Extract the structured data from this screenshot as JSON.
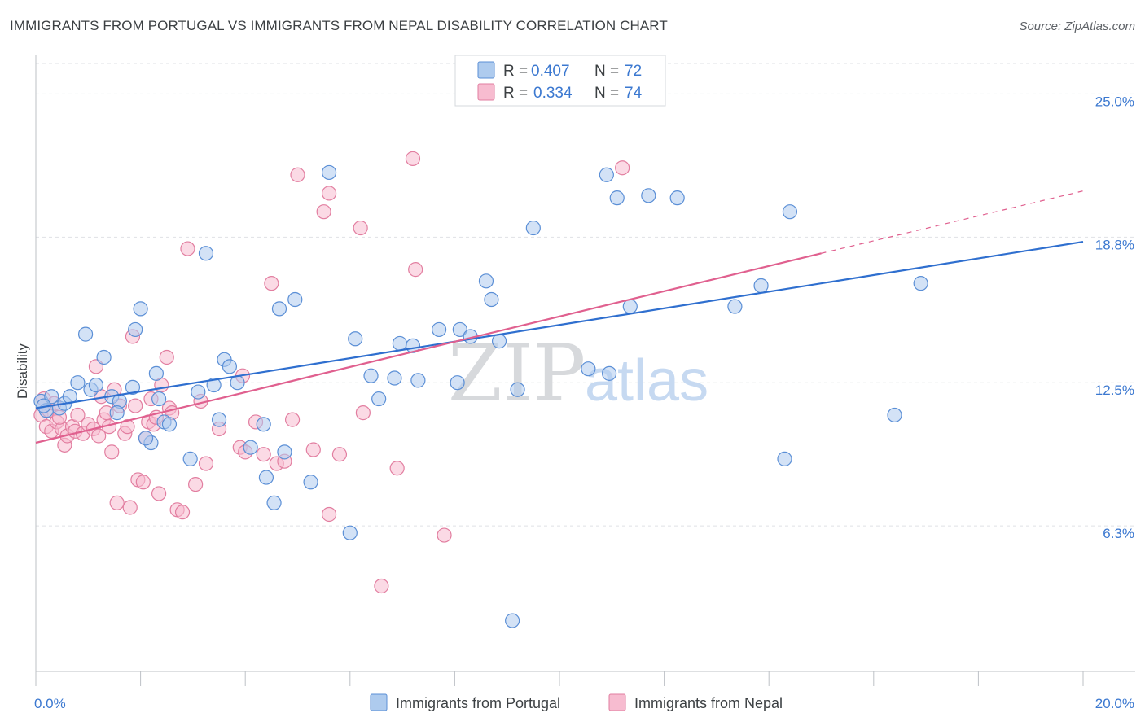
{
  "header": {
    "title": "IMMIGRANTS FROM PORTUGAL VS IMMIGRANTS FROM NEPAL DISABILITY CORRELATION CHART",
    "source": "Source: ZipAtlas.com"
  },
  "watermark": {
    "zip": "ZIP",
    "atlas": "atlas"
  },
  "legend": {
    "r_label": "R =",
    "n_label": "N =",
    "items": [
      {
        "r": "0.407",
        "n": "72"
      },
      {
        "r": "0.334",
        "n": "74"
      }
    ]
  },
  "colors": {
    "portugal_fill": "#aecbee",
    "portugal_stroke": "#5b8fd6",
    "portugal_line": "#2f6fcf",
    "nepal_fill": "#f7bcd0",
    "nepal_stroke": "#e27ea0",
    "nepal_line": "#e0608f",
    "grid": "#dfe1e5",
    "tick_label": "#3b78d0"
  },
  "chart_data": {
    "type": "scatter",
    "title": "IMMIGRANTS FROM PORTUGAL VS IMMIGRANTS FROM NEPAL DISABILITY CORRELATION CHART",
    "xlabel": "",
    "ylabel": "Disability",
    "xlim": [
      0,
      20
    ],
    "ylim": [
      0,
      26.6
    ],
    "x_tick_labels": [
      "0.0%",
      "20.0%"
    ],
    "y_ticks": [
      {
        "value": 6.3,
        "label": "6.3%"
      },
      {
        "value": 12.5,
        "label": "12.5%"
      },
      {
        "value": 18.8,
        "label": "18.8%"
      },
      {
        "value": 25.0,
        "label": "25.0%"
      }
    ],
    "grid": true,
    "series": [
      {
        "name": "Immigrants from Portugal",
        "r": 0.407,
        "n": 72,
        "trend": {
          "x": [
            0,
            20
          ],
          "y": [
            11.4,
            18.6
          ]
        },
        "points": [
          [
            0.1,
            11.7
          ],
          [
            0.2,
            11.3
          ],
          [
            0.3,
            11.9
          ],
          [
            0.45,
            11.4
          ],
          [
            0.55,
            11.6
          ],
          [
            0.65,
            11.9
          ],
          [
            0.8,
            12.5
          ],
          [
            0.95,
            14.6
          ],
          [
            1.05,
            12.2
          ],
          [
            1.15,
            12.4
          ],
          [
            1.3,
            13.6
          ],
          [
            1.45,
            11.9
          ],
          [
            1.6,
            11.7
          ],
          [
            1.85,
            12.3
          ],
          [
            1.9,
            14.8
          ],
          [
            2.0,
            15.7
          ],
          [
            2.2,
            9.9
          ],
          [
            2.35,
            11.8
          ],
          [
            2.3,
            12.9
          ],
          [
            2.45,
            10.8
          ],
          [
            2.55,
            10.7
          ],
          [
            2.95,
            9.2
          ],
          [
            3.1,
            12.1
          ],
          [
            3.25,
            18.1
          ],
          [
            3.5,
            10.9
          ],
          [
            3.6,
            13.5
          ],
          [
            3.4,
            12.4
          ],
          [
            3.85,
            12.5
          ],
          [
            4.1,
            9.7
          ],
          [
            4.35,
            10.7
          ],
          [
            4.4,
            8.4
          ],
          [
            4.55,
            7.3
          ],
          [
            4.65,
            15.7
          ],
          [
            4.75,
            9.5
          ],
          [
            4.95,
            16.1
          ],
          [
            5.25,
            8.2
          ],
          [
            5.6,
            21.6
          ],
          [
            6.0,
            6.0
          ],
          [
            6.1,
            14.4
          ],
          [
            6.4,
            12.8
          ],
          [
            6.55,
            11.8
          ],
          [
            6.85,
            12.7
          ],
          [
            6.95,
            14.2
          ],
          [
            7.2,
            14.1
          ],
          [
            7.3,
            12.6
          ],
          [
            7.7,
            14.8
          ],
          [
            8.05,
            12.5
          ],
          [
            8.1,
            14.8
          ],
          [
            8.3,
            14.5
          ],
          [
            8.6,
            16.9
          ],
          [
            8.7,
            16.1
          ],
          [
            8.85,
            14.3
          ],
          [
            9.1,
            2.2
          ],
          [
            9.2,
            12.2
          ],
          [
            9.5,
            19.2
          ],
          [
            10.55,
            13.1
          ],
          [
            10.95,
            12.9
          ],
          [
            10.9,
            21.5
          ],
          [
            11.1,
            20.5
          ],
          [
            11.35,
            15.8
          ],
          [
            11.7,
            20.6
          ],
          [
            12.25,
            20.5
          ],
          [
            13.35,
            15.8
          ],
          [
            13.85,
            16.7
          ],
          [
            14.3,
            9.2
          ],
          [
            14.4,
            19.9
          ],
          [
            16.4,
            11.1
          ],
          [
            16.9,
            16.8
          ],
          [
            0.15,
            11.5
          ],
          [
            1.55,
            11.2
          ],
          [
            2.1,
            10.1
          ],
          [
            3.7,
            13.2
          ]
        ]
      },
      {
        "name": "Immigrants from Nepal",
        "r": 0.334,
        "n": 74,
        "trend": {
          "x": [
            0,
            15
          ],
          "y": [
            9.9,
            18.1
          ]
        },
        "trend_dashed": {
          "x": [
            15,
            20
          ],
          "y": [
            18.1,
            20.8
          ]
        },
        "points": [
          [
            0.1,
            11.1
          ],
          [
            0.2,
            10.6
          ],
          [
            0.25,
            11.3
          ],
          [
            0.3,
            10.4
          ],
          [
            0.4,
            10.8
          ],
          [
            0.5,
            10.5
          ],
          [
            0.55,
            9.8
          ],
          [
            0.6,
            10.2
          ],
          [
            0.7,
            10.6
          ],
          [
            0.75,
            10.4
          ],
          [
            0.8,
            11.1
          ],
          [
            0.9,
            10.3
          ],
          [
            1.0,
            10.7
          ],
          [
            1.1,
            10.5
          ],
          [
            1.15,
            13.2
          ],
          [
            1.2,
            10.2
          ],
          [
            1.3,
            10.9
          ],
          [
            1.35,
            11.2
          ],
          [
            1.4,
            10.6
          ],
          [
            1.45,
            9.5
          ],
          [
            1.5,
            12.2
          ],
          [
            1.55,
            7.3
          ],
          [
            1.6,
            11.5
          ],
          [
            1.7,
            10.3
          ],
          [
            1.75,
            10.6
          ],
          [
            1.8,
            7.1
          ],
          [
            1.85,
            14.5
          ],
          [
            1.9,
            11.5
          ],
          [
            1.95,
            8.3
          ],
          [
            2.05,
            8.2
          ],
          [
            2.1,
            10.1
          ],
          [
            2.15,
            10.8
          ],
          [
            2.2,
            11.8
          ],
          [
            2.25,
            10.7
          ],
          [
            2.35,
            7.7
          ],
          [
            2.4,
            12.4
          ],
          [
            2.5,
            13.6
          ],
          [
            2.55,
            11.4
          ],
          [
            2.6,
            11.2
          ],
          [
            2.7,
            7.0
          ],
          [
            2.8,
            6.9
          ],
          [
            2.9,
            18.3
          ],
          [
            3.05,
            8.1
          ],
          [
            3.15,
            11.7
          ],
          [
            3.25,
            9.0
          ],
          [
            3.9,
            9.7
          ],
          [
            3.95,
            12.8
          ],
          [
            4.0,
            9.5
          ],
          [
            4.2,
            10.8
          ],
          [
            4.35,
            9.4
          ],
          [
            4.5,
            16.8
          ],
          [
            4.6,
            9.0
          ],
          [
            4.75,
            9.1
          ],
          [
            4.9,
            10.9
          ],
          [
            5.0,
            21.5
          ],
          [
            5.3,
            9.6
          ],
          [
            5.5,
            19.9
          ],
          [
            5.6,
            20.7
          ],
          [
            5.6,
            6.8
          ],
          [
            5.8,
            9.4
          ],
          [
            6.2,
            19.2
          ],
          [
            6.25,
            11.2
          ],
          [
            6.9,
            8.8
          ],
          [
            6.6,
            3.7
          ],
          [
            7.2,
            22.2
          ],
          [
            7.25,
            17.4
          ],
          [
            7.8,
            5.9
          ],
          [
            11.2,
            21.8
          ],
          [
            0.15,
            11.8
          ],
          [
            0.35,
            11.6
          ],
          [
            0.45,
            11.0
          ],
          [
            1.25,
            11.9
          ],
          [
            2.3,
            11.0
          ],
          [
            3.5,
            10.5
          ]
        ]
      }
    ]
  }
}
